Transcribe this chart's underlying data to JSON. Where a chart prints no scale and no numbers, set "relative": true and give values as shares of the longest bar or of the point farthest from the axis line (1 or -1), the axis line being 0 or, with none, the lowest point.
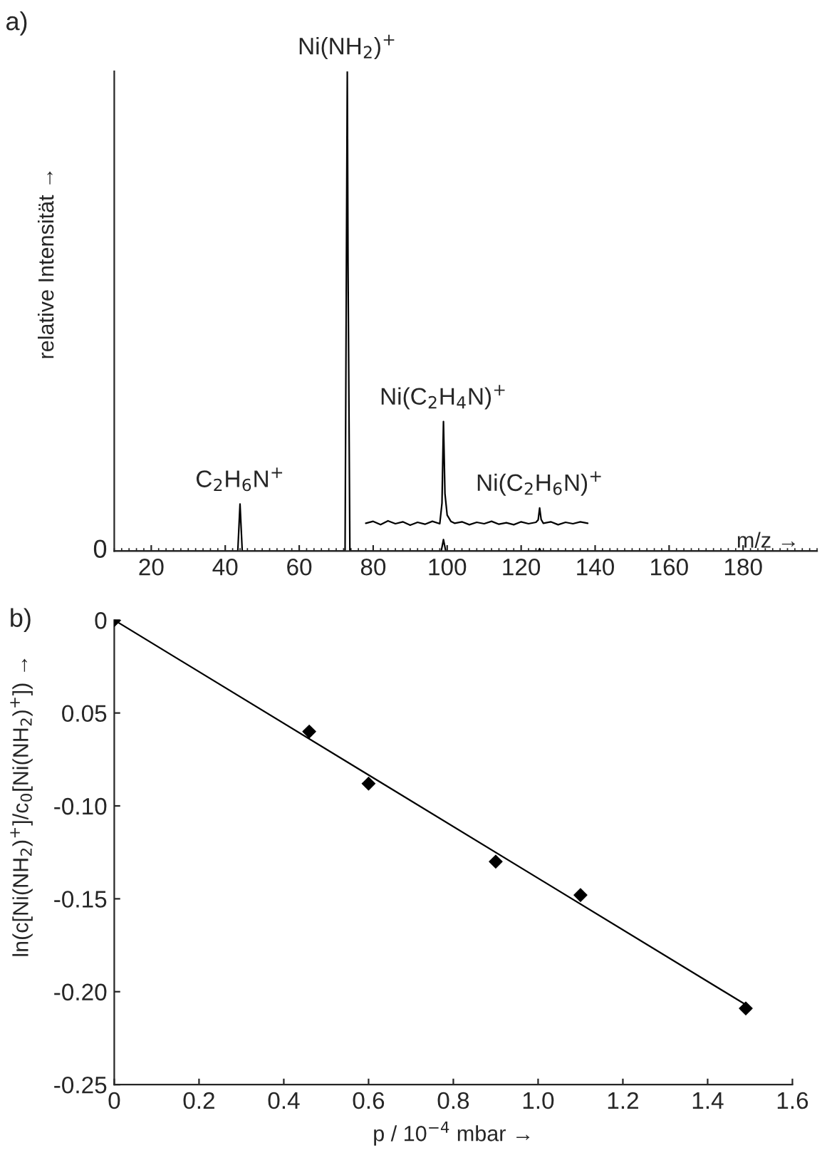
{
  "chart_data": [
    {
      "type": "line",
      "relative": true,
      "xlabel": "m/z →",
      "ylabel": "relative Intensität →",
      "xlim": [
        10,
        200
      ],
      "xticks": [
        20,
        40,
        60,
        80,
        100,
        120,
        140,
        160,
        180
      ],
      "tick_labels": "x",
      "marker": "none",
      "line_style": "solid",
      "annotations": [
        "a)",
        "0",
        {
          "text": "C$_{2}$H$_{6}$N$^{+}$",
          "x": 44,
          "y": 0.098
        },
        {
          "text": "Ni(NH$_{2}$)$^{+}$",
          "x": 73,
          "y": 1.0
        },
        {
          "text": "Ni(C$_{2}$H$_{4}$N)$^{+}$",
          "x": 99,
          "y": 0.27
        },
        {
          "text": "Ni(C$_{2}$H$_{6}$N)$^{+}$",
          "x": 125,
          "y": 0.09
        }
      ],
      "series": [
        {
          "color": "#000000",
          "x": [
            10,
            43.4,
            44,
            44.6,
            72.4,
            73,
            73.2,
            73.7,
            98.4,
            99,
            99.6,
            124.7,
            125,
            125.3,
            200
          ],
          "values": [
            0,
            0,
            0.098,
            0,
            0,
            1.0,
            0.6,
            0,
            0,
            0.024,
            0,
            0,
            0.005,
            0,
            0
          ]
        },
        {
          "color": "#000000",
          "x": [
            78,
            80,
            82,
            84,
            86,
            88,
            90,
            92,
            94,
            96,
            98,
            98.6,
            99,
            99.4,
            100,
            101,
            102,
            104,
            106,
            108,
            110,
            112,
            114,
            116,
            118,
            120,
            122,
            124,
            124.6,
            125,
            125.4,
            126,
            128,
            130,
            132,
            134,
            136,
            138
          ],
          "values": [
            0.058,
            0.062,
            0.055,
            0.063,
            0.057,
            0.061,
            0.054,
            0.06,
            0.056,
            0.062,
            0.057,
            0.1,
            0.27,
            0.12,
            0.075,
            0.062,
            0.058,
            0.061,
            0.055,
            0.06,
            0.057,
            0.062,
            0.056,
            0.059,
            0.055,
            0.061,
            0.057,
            0.06,
            0.065,
            0.09,
            0.066,
            0.058,
            0.061,
            0.055,
            0.06,
            0.057,
            0.061,
            0.058
          ]
        }
      ]
    },
    {
      "type": "scatter",
      "xlabel": "p / 10$^{−4}$ mbar →",
      "ylabel": "ln(c[Ni(NH$_{2}$)$^{+}$]/c$_{0}$[Ni(NH$_{2}$)$^{+}$]) →",
      "xlim": [
        0,
        1.6
      ],
      "xticks": [
        0,
        {
          "value": 0.2,
          "label": "0.2"
        },
        {
          "value": 0.4,
          "label": "0.4"
        },
        {
          "value": 0.6,
          "label": "0.6"
        },
        {
          "value": 0.8,
          "label": "0.8"
        },
        {
          "value": 1.0,
          "label": "1.0"
        },
        {
          "value": 1.2,
          "label": "1.2"
        },
        {
          "value": 1.4,
          "label": "1.4"
        },
        {
          "value": 1.6,
          "label": "1.6"
        }
      ],
      "ylim": [
        -0.25,
        0
      ],
      "yticks": [
        0,
        {
          "value": -0.05,
          "label": "0.05"
        },
        {
          "value": -0.1,
          "label": "-0.10"
        },
        {
          "value": -0.15,
          "label": "-0.15"
        },
        {
          "value": -0.2,
          "label": "-0.20"
        },
        {
          "value": -0.25,
          "label": "-0.25"
        }
      ],
      "annotations": [
        "b)"
      ],
      "series": [
        {
          "color": "#000000",
          "marker": "diamond",
          "x": [
            0,
            0.46,
            0.6,
            0.9,
            1.1,
            1.49
          ],
          "values": [
            0,
            -0.06,
            -0.088,
            -0.13,
            -0.148,
            -0.209
          ]
        },
        {
          "type": "line",
          "marker": "none",
          "color": "#000000",
          "x": [
            0,
            1.49
          ],
          "values": [
            0,
            -0.207
          ]
        }
      ]
    }
  ]
}
